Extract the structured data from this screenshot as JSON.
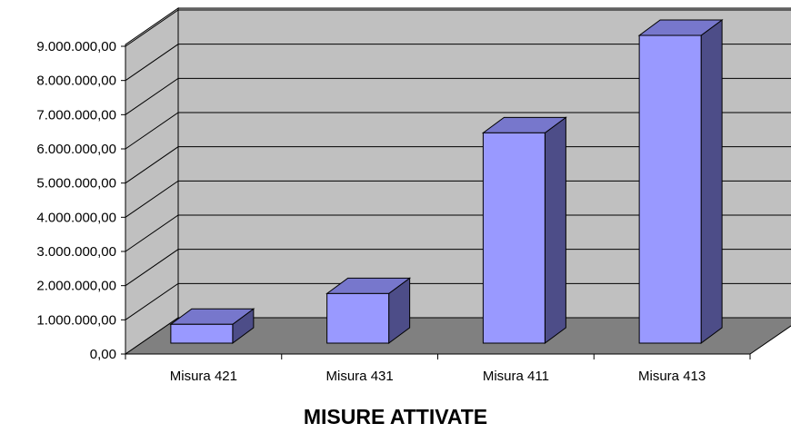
{
  "chart_data": {
    "type": "bar",
    "title": "MISURE ATTIVATE",
    "xlabel": "",
    "ylabel": "",
    "categories": [
      "Misura 421",
      "Misura 431",
      "Misura 411",
      "Misura 413"
    ],
    "values": [
      550000,
      1450000,
      6150000,
      9000000
    ],
    "ylim": [
      0,
      9000000
    ],
    "yticks": [
      0,
      1000000,
      2000000,
      3000000,
      4000000,
      5000000,
      6000000,
      7000000,
      8000000,
      9000000
    ],
    "ytick_labels": [
      "0,00",
      "1.000.000,00",
      "2.000.000,00",
      "3.000.000,00",
      "4.000.000,00",
      "5.000.000,00",
      "6.000.000,00",
      "7.000.000,00",
      "8.000.000,00",
      "9.000.000,00"
    ],
    "grid": true,
    "style": "3d-column",
    "colors": {
      "bar_front": "#9999ff",
      "bar_top": "#7777cc",
      "bar_side": "#4d4d88",
      "back_wall": "#c0c0c0",
      "side_wall": "#c0c0c0",
      "floor": "#808080",
      "gridline": "#000000"
    }
  }
}
